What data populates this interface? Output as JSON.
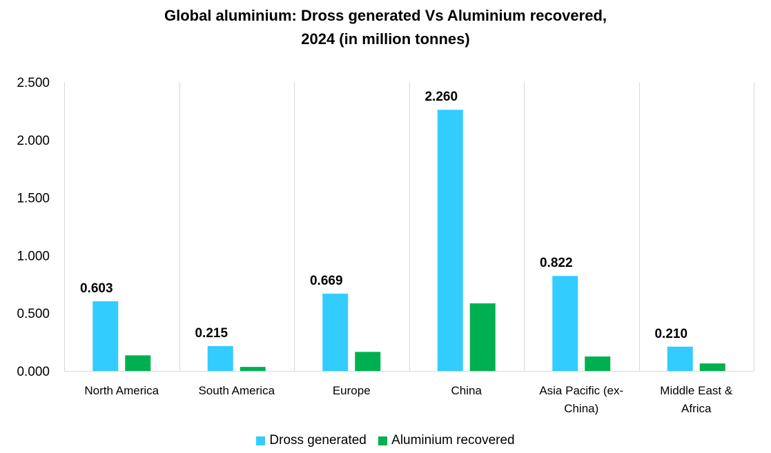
{
  "chart_data": {
    "type": "bar",
    "title_lines": [
      "Global aluminium: Dross generated Vs Aluminium recovered,",
      "2024 (in million tonnes)"
    ],
    "categories": [
      "North America",
      "South America",
      "Europe",
      "China",
      "Asia Pacific (ex-China)",
      "Middle East & Africa"
    ],
    "category_label_lines": [
      [
        "North America"
      ],
      [
        "South America"
      ],
      [
        "Europe"
      ],
      [
        "China"
      ],
      [
        "Asia Pacific (ex-",
        "China)"
      ],
      [
        "Middle East &",
        "Africa"
      ]
    ],
    "series": [
      {
        "name": "Dross generated",
        "color": "#33CCFF",
        "values": [
          0.603,
          0.215,
          0.669,
          2.26,
          0.822,
          0.21
        ],
        "show_labels": true
      },
      {
        "name": "Aluminium recovered",
        "color": "#00B050",
        "values": [
          0.135,
          0.035,
          0.165,
          0.585,
          0.125,
          0.065
        ],
        "show_labels": false
      }
    ],
    "value_labels": [
      "0.603",
      "0.215",
      "0.669",
      "2.260",
      "0.822",
      "0.210"
    ],
    "ylim": [
      0,
      2.5
    ],
    "yticks": [
      0,
      0.5,
      1.0,
      1.5,
      2.0,
      2.5
    ],
    "ytick_labels": [
      "0.000",
      "0.500",
      "1.000",
      "1.500",
      "2.000",
      "2.500"
    ],
    "xlabel": "",
    "ylabel": "",
    "grid": "vertical category separators",
    "legend_position": "bottom"
  }
}
